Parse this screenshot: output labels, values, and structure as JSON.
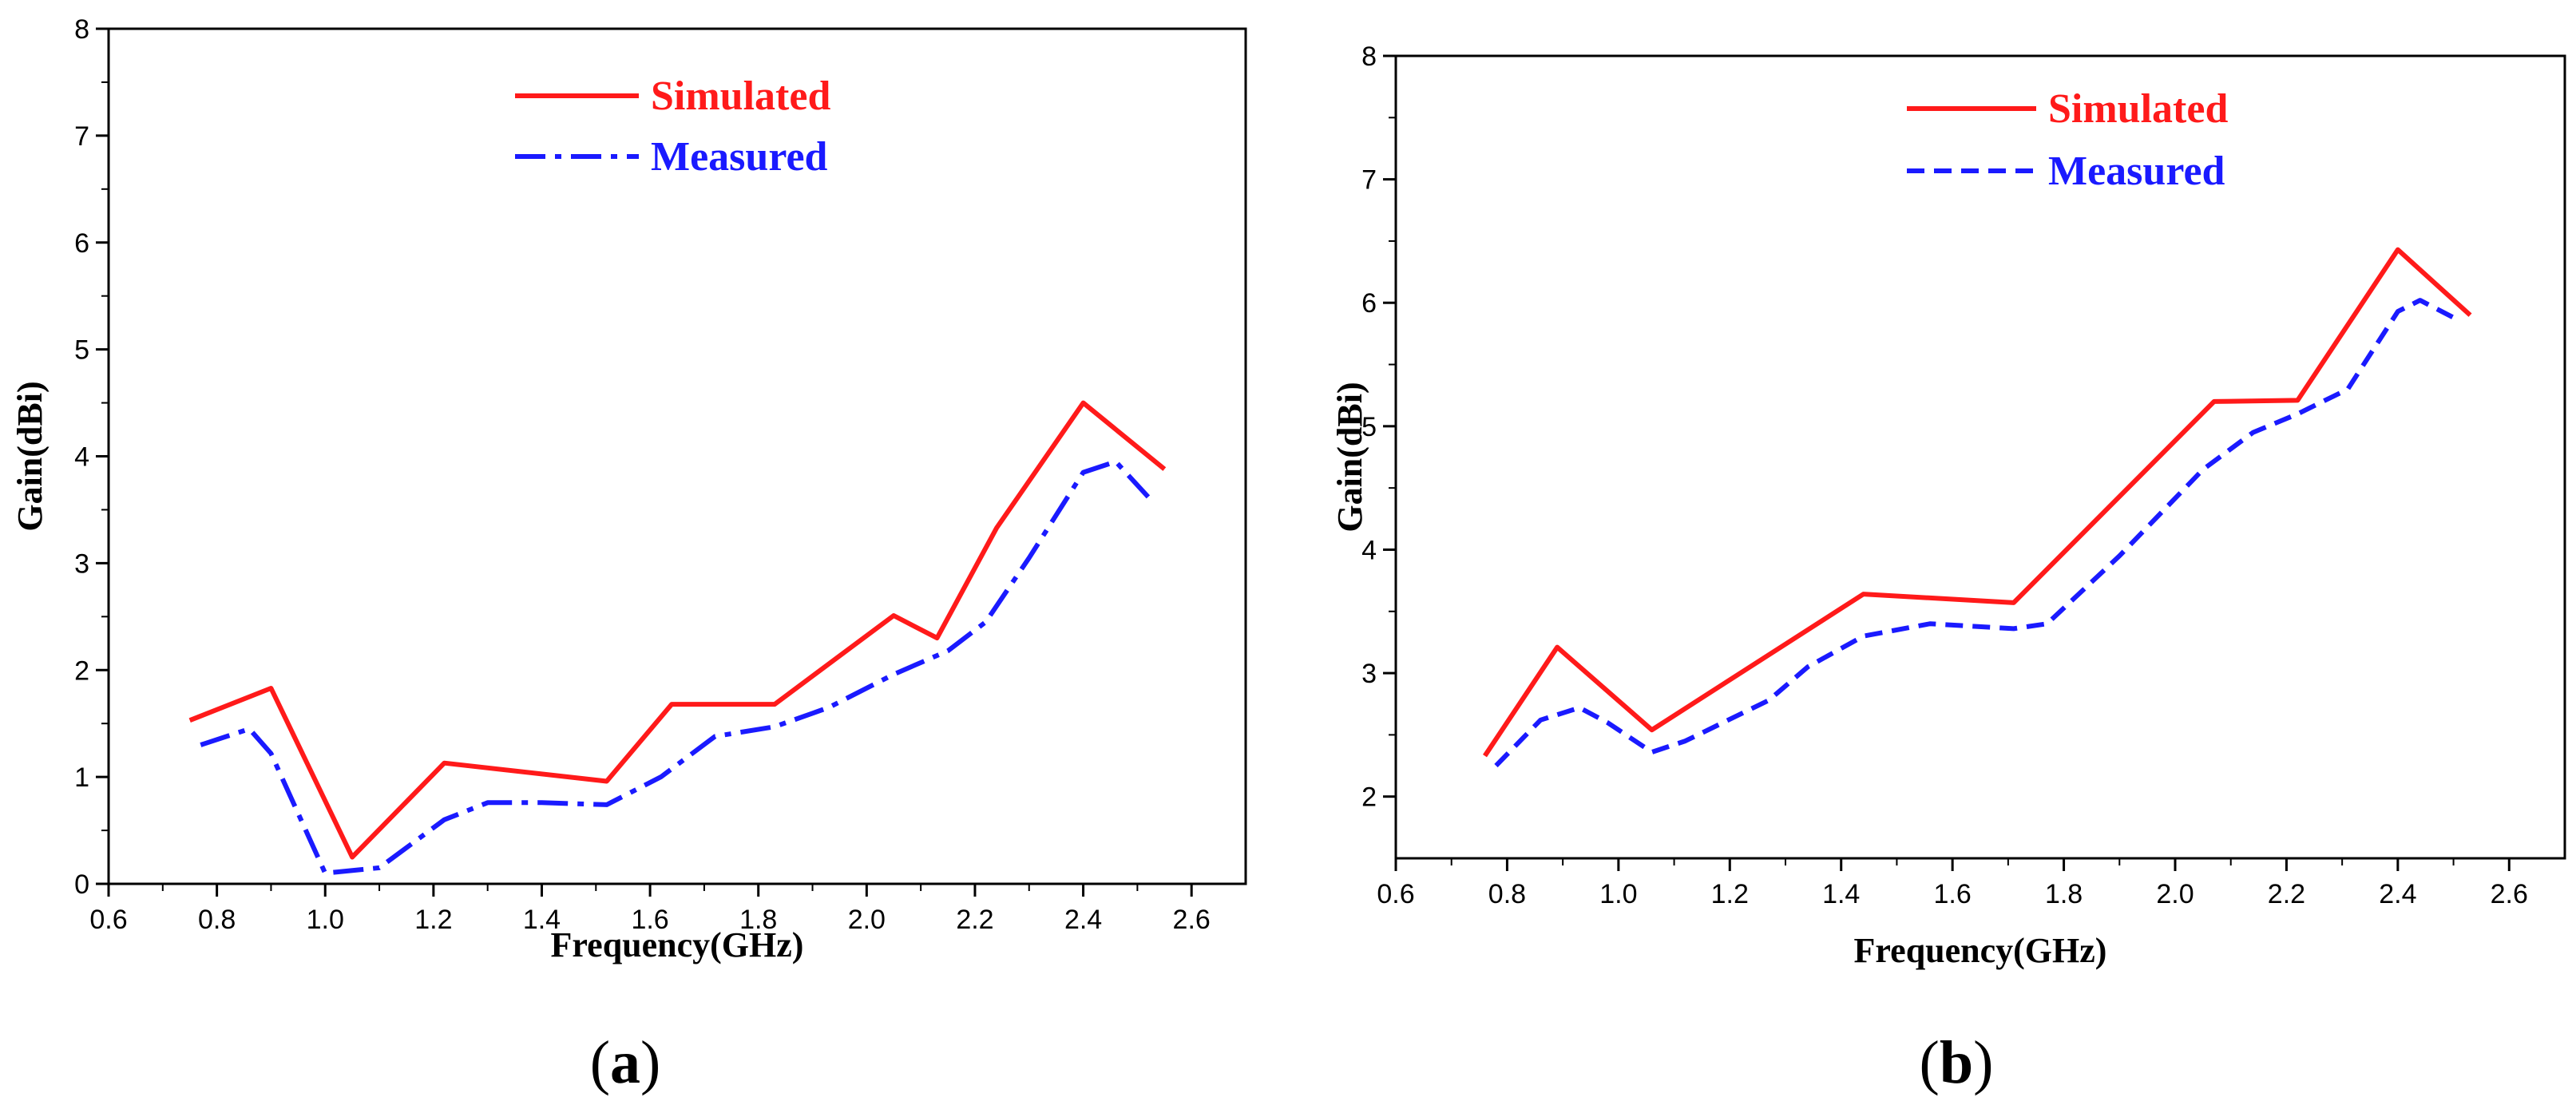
{
  "chart_data": [
    {
      "panel": "a",
      "type": "line",
      "caption_open": "(",
      "caption_letter": "a",
      "caption_close": ")",
      "xlabel": "Frequency(GHz)",
      "ylabel": "Gain(dBi)",
      "xlim": [
        0.6,
        2.7
      ],
      "ylim": [
        0,
        8
      ],
      "xticks": [
        "0.6",
        "0.8",
        "1.0",
        "1.2",
        "1.4",
        "1.6",
        "1.8",
        "2.0",
        "2.2",
        "2.4",
        "2.6"
      ],
      "yticks": [
        "0",
        "1",
        "2",
        "3",
        "4",
        "5",
        "6",
        "7",
        "8"
      ],
      "legend_position": "top-center",
      "series": [
        {
          "name": "Simulated",
          "color": "#ff1a1a",
          "style": "solid",
          "x": [
            0.75,
            0.9,
            1.05,
            1.22,
            1.52,
            1.64,
            1.83,
            2.05,
            2.13,
            2.24,
            2.4,
            2.55
          ],
          "y": [
            1.53,
            1.83,
            0.25,
            1.13,
            0.96,
            1.68,
            1.68,
            2.51,
            2.3,
            3.33,
            4.5,
            3.88
          ]
        },
        {
          "name": "Measured",
          "color": "#1a1aff",
          "style": "dashdot",
          "x": [
            0.77,
            0.86,
            0.9,
            1.0,
            1.1,
            1.22,
            1.3,
            1.4,
            1.52,
            1.62,
            1.72,
            1.83,
            1.93,
            2.05,
            2.15,
            2.22,
            2.3,
            2.4,
            2.46,
            2.52
          ],
          "y": [
            1.3,
            1.45,
            1.22,
            0.1,
            0.15,
            0.6,
            0.76,
            0.76,
            0.74,
            1.0,
            1.38,
            1.47,
            1.65,
            1.96,
            2.18,
            2.45,
            3.05,
            3.85,
            3.95,
            3.62
          ]
        }
      ]
    },
    {
      "panel": "b",
      "type": "line",
      "caption_open": "(",
      "caption_letter": "b",
      "caption_close": ")",
      "xlabel": "Frequency(GHz)",
      "ylabel": "Gain(dBi)",
      "xlim": [
        0.6,
        2.7
      ],
      "ylim": [
        1.5,
        8
      ],
      "xticks": [
        "0.6",
        "0.8",
        "1.0",
        "1.2",
        "1.4",
        "1.6",
        "1.8",
        "2.0",
        "2.2",
        "2.4",
        "2.6"
      ],
      "yticks": [
        "2",
        "3",
        "4",
        "5",
        "6",
        "7",
        "8"
      ],
      "legend_position": "top-center",
      "series": [
        {
          "name": "Simulated",
          "color": "#ff1a1a",
          "style": "solid",
          "x": [
            0.76,
            0.89,
            1.06,
            1.44,
            1.71,
            2.07,
            2.22,
            2.4,
            2.53
          ],
          "y": [
            2.33,
            3.21,
            2.54,
            3.64,
            3.57,
            5.2,
            5.21,
            6.43,
            5.9
          ]
        },
        {
          "name": "Measured",
          "color": "#1a1aff",
          "style": "dashed",
          "x": [
            0.78,
            0.86,
            0.93,
            0.98,
            1.06,
            1.12,
            1.27,
            1.34,
            1.44,
            1.56,
            1.71,
            1.77,
            1.9,
            2.05,
            2.14,
            2.22,
            2.31,
            2.4,
            2.44,
            2.5
          ],
          "y": [
            2.25,
            2.62,
            2.72,
            2.6,
            2.36,
            2.45,
            2.78,
            3.05,
            3.3,
            3.4,
            3.36,
            3.4,
            3.95,
            4.65,
            4.95,
            5.1,
            5.3,
            5.93,
            6.02,
            5.88
          ]
        }
      ]
    }
  ]
}
